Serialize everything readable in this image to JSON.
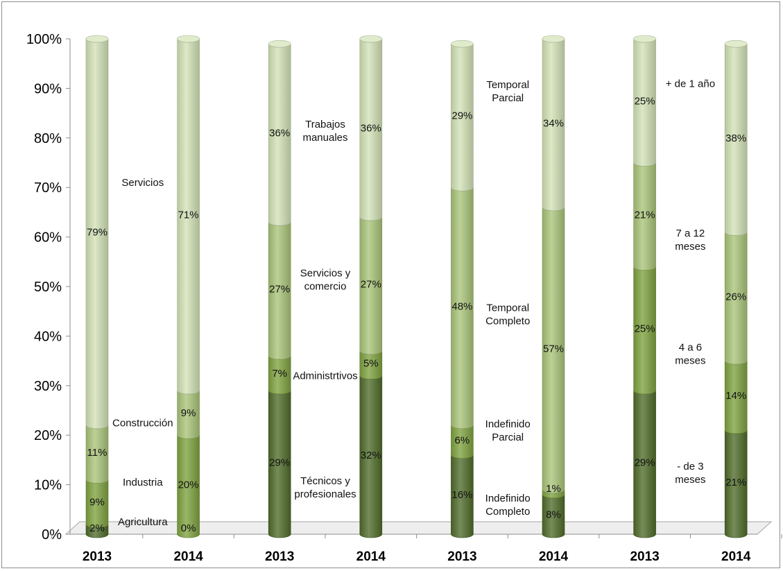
{
  "chart_data": {
    "type": "bar",
    "stacked": true,
    "normalized": true,
    "three_d": true,
    "ylim": [
      0,
      100
    ],
    "yticks": [
      "0%",
      "10%",
      "20%",
      "30%",
      "40%",
      "50%",
      "60%",
      "70%",
      "80%",
      "90%",
      "100%"
    ],
    "grid": false,
    "legend": "none",
    "colors": [
      "#4f6b2a",
      "#7ea23f",
      "#a9c479",
      "#d2e2b6"
    ],
    "columns": [
      {
        "xlabel": "2013",
        "segments": [
          {
            "value": 2,
            "label": "2%",
            "shade": 0
          },
          {
            "value": 9,
            "label": "9%",
            "shade": 1
          },
          {
            "value": 11,
            "label": "11%",
            "shade": 2
          },
          {
            "value": 79,
            "label": "79%",
            "shade": 3
          }
        ]
      },
      {
        "xlabel": "2014",
        "segments": [
          {
            "value": 0,
            "label": "0%",
            "shade": 0
          },
          {
            "value": 20,
            "label": "20%",
            "shade": 1
          },
          {
            "value": 9,
            "label": "9%",
            "shade": 2
          },
          {
            "value": 71,
            "label": "71%",
            "shade": 3
          }
        ]
      },
      {
        "xlabel": "2013",
        "segments": [
          {
            "value": 29,
            "label": "29%",
            "shade": 0
          },
          {
            "value": 7,
            "label": "7%",
            "shade": 1
          },
          {
            "value": 27,
            "label": "27%",
            "shade": 2
          },
          {
            "value": 36,
            "label": "36%",
            "shade": 3
          }
        ]
      },
      {
        "xlabel": "2014",
        "segments": [
          {
            "value": 32,
            "label": "32%",
            "shade": 0
          },
          {
            "value": 5,
            "label": "5%",
            "shade": 1
          },
          {
            "value": 27,
            "label": "27%",
            "shade": 2
          },
          {
            "value": 36,
            "label": "36%",
            "shade": 3
          }
        ]
      },
      {
        "xlabel": "2013",
        "segments": [
          {
            "value": 16,
            "label": "16%",
            "shade": 0
          },
          {
            "value": 6,
            "label": "6%",
            "shade": 1
          },
          {
            "value": 48,
            "label": "48%",
            "shade": 2
          },
          {
            "value": 29,
            "label": "29%",
            "shade": 3
          }
        ]
      },
      {
        "xlabel": "2014",
        "segments": [
          {
            "value": 8,
            "label": "8%",
            "shade": 0
          },
          {
            "value": 1,
            "label": "1%",
            "shade": 1
          },
          {
            "value": 57,
            "label": "57%",
            "shade": 2
          },
          {
            "value": 34,
            "label": "34%",
            "shade": 3
          }
        ]
      },
      {
        "xlabel": "2013",
        "segments": [
          {
            "value": 29,
            "label": "29%",
            "shade": 0
          },
          {
            "value": 25,
            "label": "25%",
            "shade": 1
          },
          {
            "value": 21,
            "label": "21%",
            "shade": 2
          },
          {
            "value": 25,
            "label": "25%",
            "shade": 3
          }
        ]
      },
      {
        "xlabel": "2014",
        "segments": [
          {
            "value": 21,
            "label": "21%",
            "shade": 0
          },
          {
            "value": 14,
            "label": "14%",
            "shade": 1
          },
          {
            "value": 26,
            "label": "26%",
            "shade": 2
          },
          {
            "value": 38,
            "label": "38%",
            "shade": 3
          }
        ]
      }
    ],
    "annotations": [
      {
        "text": [
          "Servicios"
        ],
        "col": 0,
        "y": 71
      },
      {
        "text": [
          "Construcción"
        ],
        "col": 0,
        "y": 22.5
      },
      {
        "text": [
          "Industria"
        ],
        "col": 0,
        "y": 10.5
      },
      {
        "text": [
          "Agricultura"
        ],
        "col": 0,
        "y": 2.5
      },
      {
        "text": [
          "Trabajos",
          "manuales"
        ],
        "col": 2,
        "y": 81.5
      },
      {
        "text": [
          "Servicios y",
          "comercio"
        ],
        "col": 2,
        "y": 51.5
      },
      {
        "text": [
          "Administrtivos"
        ],
        "col": 2,
        "y": 32
      },
      {
        "text": [
          "Técnicos y",
          "profesionales"
        ],
        "col": 2,
        "y": 9.5
      },
      {
        "text": [
          "Temporal",
          "Parcial"
        ],
        "col": 4,
        "y": 89.5
      },
      {
        "text": [
          "Temporal",
          "Completo"
        ],
        "col": 4,
        "y": 44.5
      },
      {
        "text": [
          "Indefinido",
          "Parcial"
        ],
        "col": 4,
        "y": 21
      },
      {
        "text": [
          "Indefinido",
          "Completo"
        ],
        "col": 4,
        "y": 6
      },
      {
        "text": [
          "+ de 1 año"
        ],
        "col": 6,
        "y": 91
      },
      {
        "text": [
          "7 a 12",
          "meses"
        ],
        "col": 6,
        "y": 59.5
      },
      {
        "text": [
          "4 a 6",
          "meses"
        ],
        "col": 6,
        "y": 36.5
      },
      {
        "text": [
          "- de 3",
          "meses"
        ],
        "col": 6,
        "y": 12.5
      }
    ]
  }
}
